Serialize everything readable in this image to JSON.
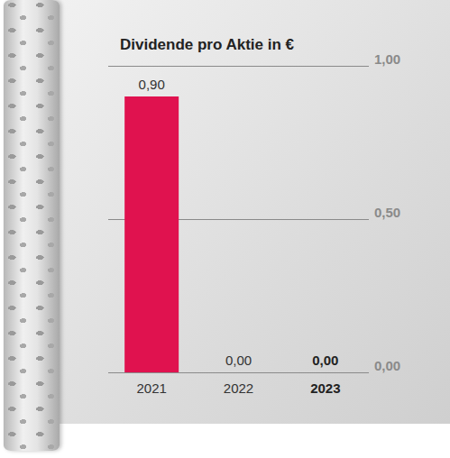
{
  "chart_data": {
    "type": "bar",
    "title": "Dividende pro Aktie in €",
    "categories": [
      "2021",
      "2022",
      "2023"
    ],
    "values": [
      0.9,
      0,
      0
    ],
    "value_labels": [
      "0,90",
      "0,00",
      "0,00"
    ],
    "color": "#e0124f",
    "ylim": [
      0,
      1
    ],
    "yticks": [
      {
        "value": 0,
        "label": "0,00"
      },
      {
        "value": 0.5,
        "label": "0,50"
      },
      {
        "value": 1,
        "label": "1,00"
      }
    ],
    "grid": true,
    "data_labels": true
  }
}
